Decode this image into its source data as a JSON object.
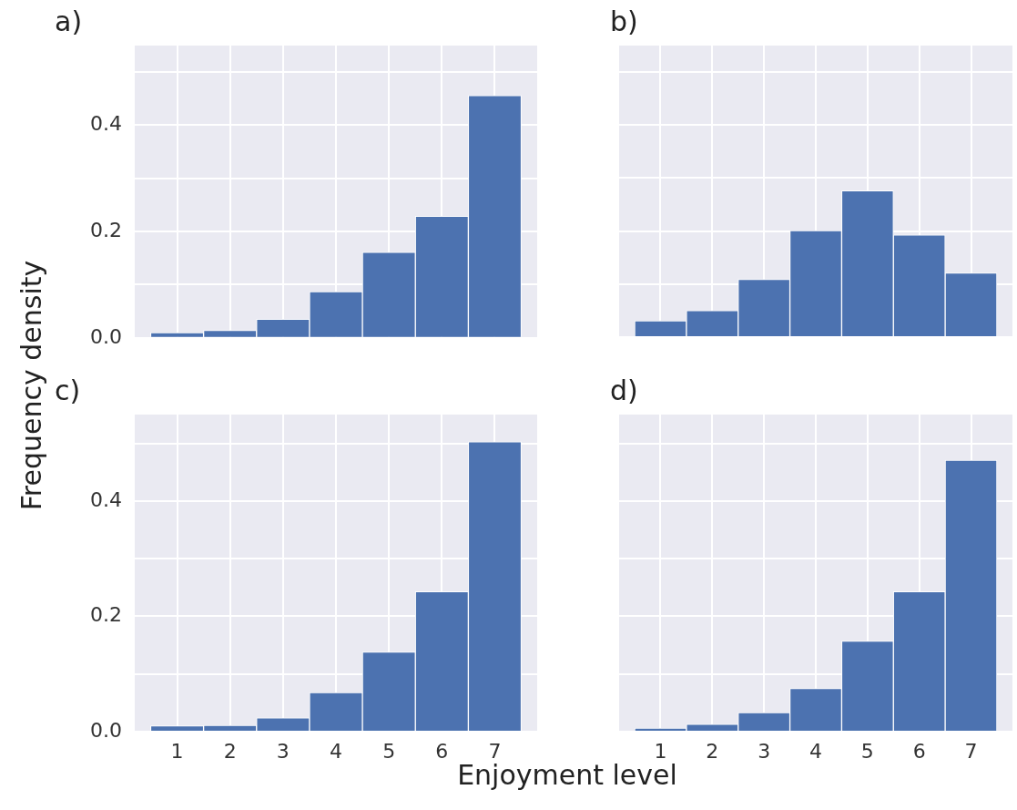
{
  "chart_data": [
    {
      "type": "histogram",
      "title": "a)",
      "ylabel": "Frequency density",
      "bins": [
        0.5,
        1.5,
        2.5,
        3.5,
        4.5,
        5.5,
        6.5,
        7.5
      ],
      "values": [
        0.01,
        0.014,
        0.035,
        0.087,
        0.161,
        0.229,
        0.456
      ],
      "color": "#4c72b0",
      "xlim": [
        0.2,
        7.8
      ],
      "ylim": [
        0,
        0.55
      ],
      "xticks": [
        1,
        2,
        3,
        4,
        5,
        6,
        7
      ],
      "yticks": [
        {
          "value": 0,
          "label": "0.0"
        },
        {
          "value": 0.1,
          "label": null
        },
        {
          "value": 0.2,
          "label": "0.2"
        },
        {
          "value": 0.3,
          "label": null
        },
        {
          "value": 0.4,
          "label": "0.4"
        },
        {
          "value": 0.5,
          "label": null
        }
      ],
      "grid": true,
      "tick_labels": "y"
    },
    {
      "type": "histogram",
      "title": "b)",
      "bins": [
        0.5,
        1.5,
        2.5,
        3.5,
        4.5,
        5.5,
        6.5,
        7.5
      ],
      "values": [
        0.031,
        0.05,
        0.109,
        0.201,
        0.276,
        0.193,
        0.121
      ],
      "color": "#4c72b0",
      "xlim": [
        0.2,
        7.8
      ],
      "ylim": [
        0,
        0.55
      ],
      "xticks": [
        1,
        2,
        3,
        4,
        5,
        6,
        7
      ],
      "yticks": [
        {
          "value": 0,
          "label": null
        },
        {
          "value": 0.1,
          "label": null
        },
        {
          "value": 0.2,
          "label": null
        },
        {
          "value": 0.3,
          "label": null
        },
        {
          "value": 0.4,
          "label": null
        },
        {
          "value": 0.5,
          "label": null
        }
      ],
      "grid": true,
      "tick_labels": false
    },
    {
      "type": "histogram",
      "title": "c)",
      "xlabel": "Enjoyment level",
      "bins": [
        0.5,
        1.5,
        2.5,
        3.5,
        4.5,
        5.5,
        6.5,
        7.5
      ],
      "values": [
        0.01,
        0.011,
        0.024,
        0.068,
        0.138,
        0.243,
        0.503
      ],
      "color": "#4c72b0",
      "xlim": [
        0.2,
        7.8
      ],
      "ylim": [
        0,
        0.55
      ],
      "xticks": [
        1,
        2,
        3,
        4,
        5,
        6,
        7
      ],
      "yticks": [
        {
          "value": 0,
          "label": "0.0"
        },
        {
          "value": 0.1,
          "label": null
        },
        {
          "value": 0.2,
          "label": "0.2"
        },
        {
          "value": 0.3,
          "label": null
        },
        {
          "value": 0.4,
          "label": "0.4"
        },
        {
          "value": 0.5,
          "label": null
        }
      ],
      "grid": true
    },
    {
      "type": "histogram",
      "title": "d)",
      "bins": [
        0.5,
        1.5,
        2.5,
        3.5,
        4.5,
        5.5,
        6.5,
        7.5
      ],
      "values": [
        0.006,
        0.013,
        0.033,
        0.075,
        0.157,
        0.243,
        0.471
      ],
      "color": "#4c72b0",
      "xlim": [
        0.2,
        7.8
      ],
      "ylim": [
        0,
        0.55
      ],
      "xticks": [
        1,
        2,
        3,
        4,
        5,
        6,
        7
      ],
      "yticks": [
        {
          "value": 0,
          "label": null
        },
        {
          "value": 0.1,
          "label": null
        },
        {
          "value": 0.2,
          "label": null
        },
        {
          "value": 0.3,
          "label": null
        },
        {
          "value": 0.4,
          "label": null
        },
        {
          "value": 0.5,
          "label": null
        }
      ],
      "grid": true,
      "tick_labels": "x"
    }
  ]
}
